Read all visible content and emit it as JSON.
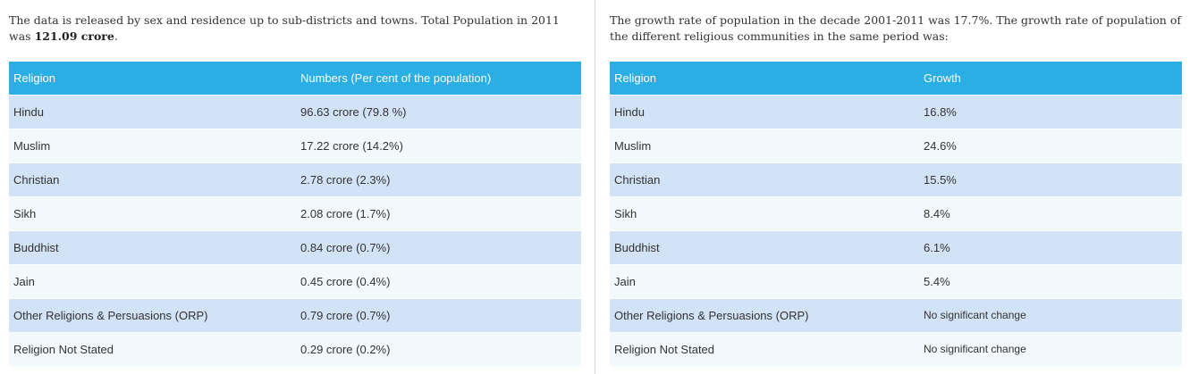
{
  "left": {
    "intro_text": "The data is released by sex and residence up to sub-districts and towns. Total Population in 2011 was",
    "intro_bold": "121.09 crore",
    "intro_end": ".",
    "table": {
      "headers": [
        "Religion",
        "Numbers (Per cent of the population)"
      ],
      "rows": [
        [
          "Hindu",
          "96.63 crore (79.8 %)"
        ],
        [
          "Muslim",
          "17.22 crore (14.2%)"
        ],
        [
          "Christian",
          "2.78 crore (2.3%)"
        ],
        [
          "Sikh",
          "2.08 crore (1.7%)"
        ],
        [
          "Buddhist",
          "0.84 crore (0.7%)"
        ],
        [
          "Jain",
          "0.45 crore (0.4%)"
        ],
        [
          "Other Religions & Persuasions (ORP)",
          "0.79 crore (0.7%)"
        ],
        [
          "Religion Not Stated",
          "0.29 crore (0.2%)"
        ]
      ]
    }
  },
  "right": {
    "intro_text": "The growth rate of population in the decade 2001-2011 was 17.7%. The growth rate of population of the different religious communities in the same period was:",
    "table": {
      "headers": [
        "Religion",
        "Growth"
      ],
      "rows": [
        [
          "Hindu",
          "16.8%"
        ],
        [
          "Muslim",
          "24.6%"
        ],
        [
          "Christian",
          "15.5%"
        ],
        [
          "Sikh",
          "8.4%"
        ],
        [
          "Buddhist",
          "6.1%"
        ],
        [
          "Jain",
          "5.4%"
        ],
        [
          "Other Religions & Persuasions (ORP)",
          "No significant change"
        ],
        [
          "Religion Not Stated",
          "No significant change"
        ]
      ]
    }
  },
  "colors": {
    "header_bg": "#2aaee4",
    "row_odd_bg": "#d2e3f7",
    "row_even_bg": "#f2f9fc",
    "text": "#333333"
  }
}
